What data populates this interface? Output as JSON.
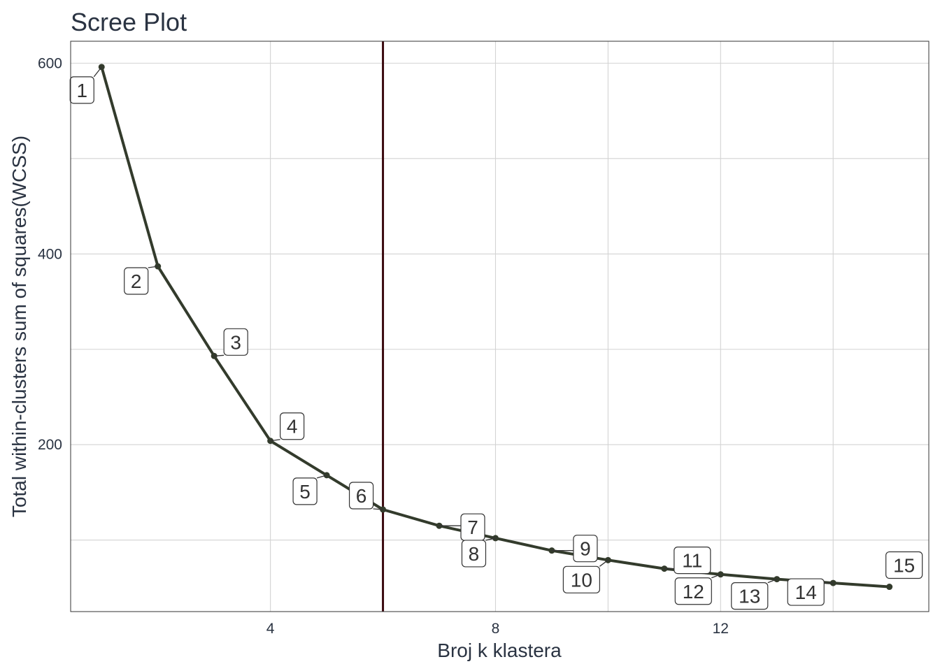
{
  "chart_data": {
    "type": "line",
    "title": "Scree Plot",
    "xlabel": "Broj k klastera",
    "ylabel": "Total within-clusters sum of squares(WCSS)",
    "x": [
      1,
      2,
      3,
      4,
      5,
      6,
      7,
      8,
      9,
      10,
      11,
      12,
      13,
      14,
      15
    ],
    "values": [
      596,
      387,
      293,
      204,
      168,
      132,
      115,
      102,
      89,
      79,
      70,
      64,
      59,
      55,
      51
    ],
    "point_labels": [
      "1",
      "2",
      "3",
      "4",
      "5",
      "6",
      "7",
      "8",
      "9",
      "10",
      "11",
      "12",
      "13",
      "14",
      "15"
    ],
    "xlim": [
      0.45,
      15.7
    ],
    "ylim": [
      25,
      623
    ],
    "x_ticks": [
      4,
      8,
      12
    ],
    "x_tick_labels": [
      "4",
      "8",
      "12"
    ],
    "x_minor_ticks": [
      6,
      10,
      14
    ],
    "y_ticks": [
      200,
      400,
      600
    ],
    "y_tick_labels": [
      "200",
      "400",
      "600"
    ],
    "y_minor_ticks": [
      100,
      300,
      500
    ],
    "vline_x": 6,
    "grid": true,
    "legend": "none",
    "colors": {
      "line": "#333b2c",
      "vline": "#3b0a0f",
      "text": "#2a3342"
    }
  }
}
